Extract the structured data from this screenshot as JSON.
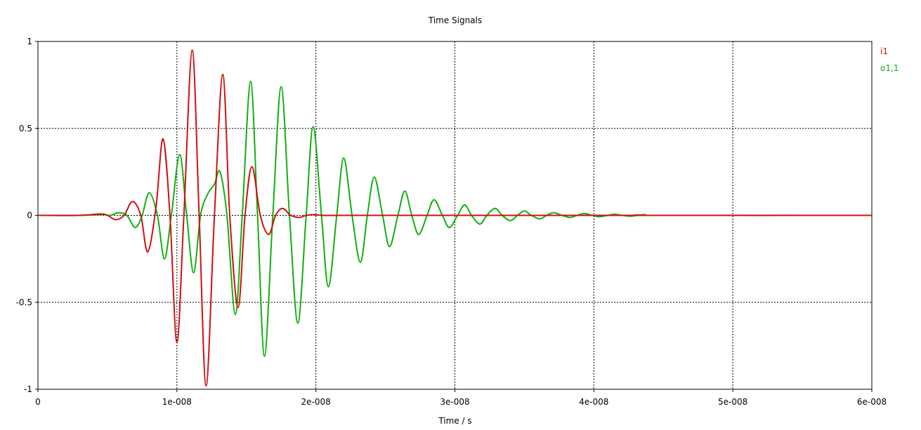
{
  "chart_data": {
    "type": "line",
    "title": "Time Signals",
    "xlabel": "Time / s",
    "ylabel": "",
    "xlim": [
      0,
      6e-08
    ],
    "ylim": [
      -1,
      1
    ],
    "xticks": [
      0,
      1e-08,
      2e-08,
      3e-08,
      4e-08,
      5e-08,
      6e-08
    ],
    "xtick_labels": [
      "0",
      "1e-008",
      "2e-008",
      "3e-008",
      "4e-008",
      "5e-008",
      "6e-008"
    ],
    "yticks": [
      1,
      0.5,
      0,
      -0.5,
      -1
    ],
    "ytick_labels": [
      "1",
      "0.5",
      "0",
      "-0.5",
      "-1"
    ],
    "grid": true,
    "legend_position": "right",
    "series": [
      {
        "name": "i1",
        "color": "#d01010",
        "x": [
          0,
          3e-09,
          4.5e-09,
          5e-09,
          5.6e-09,
          6.2e-09,
          6.8e-09,
          7.4e-09,
          7.9e-09,
          8.5e-09,
          9e-09,
          9.5e-09,
          1e-08,
          1.05e-08,
          1.11e-08,
          1.16e-08,
          1.21e-08,
          1.27e-08,
          1.33e-08,
          1.38e-08,
          1.44e-08,
          1.49e-08,
          1.54e-08,
          1.6e-08,
          1.66e-08,
          1.71e-08,
          1.76e-08,
          1.82e-08,
          1.88e-08,
          1.93e-08,
          1.98e-08,
          2.05e-08,
          2.2e-08,
          3e-08,
          6e-08
        ],
        "y": [
          0,
          0,
          0.008,
          0.0,
          -0.025,
          0.0,
          0.08,
          0.0,
          -0.21,
          0.05,
          0.44,
          0.0,
          -0.73,
          0.0,
          0.95,
          0.0,
          -0.98,
          0.0,
          0.81,
          0.0,
          -0.53,
          0.0,
          0.28,
          0.0,
          -0.11,
          0.0,
          0.04,
          0.0,
          -0.012,
          0.0,
          0.004,
          0.0,
          0,
          0,
          0
        ]
      },
      {
        "name": "o1,1",
        "color": "#10b010",
        "x": [
          0,
          3e-09,
          4.6e-09,
          5.2e-09,
          5.8e-09,
          6.4e-09,
          7e-09,
          7.5e-09,
          8e-09,
          8.6e-09,
          9.1e-09,
          9.6e-09,
          1.02e-08,
          1.07e-08,
          1.12e-08,
          1.17e-08,
          1.22e-08,
          1.27e-08,
          1.31e-08,
          1.36e-08,
          1.42e-08,
          1.47e-08,
          1.53e-08,
          1.58e-08,
          1.63e-08,
          1.69e-08,
          1.75e-08,
          1.81e-08,
          1.87e-08,
          1.93e-08,
          1.98e-08,
          2.04e-08,
          2.09e-08,
          2.15e-08,
          2.2e-08,
          2.26e-08,
          2.32e-08,
          2.37e-08,
          2.42e-08,
          2.48e-08,
          2.53e-08,
          2.59e-08,
          2.64e-08,
          2.69e-08,
          2.74e-08,
          2.8e-08,
          2.85e-08,
          2.91e-08,
          2.96e-08,
          3.02e-08,
          3.07e-08,
          3.12e-08,
          3.18e-08,
          3.23e-08,
          3.29e-08,
          3.34e-08,
          3.4e-08,
          3.45e-08,
          3.5e-08,
          3.55e-08,
          3.61e-08,
          3.66e-08,
          3.71e-08,
          3.77e-08,
          3.83e-08,
          3.88e-08,
          3.93e-08,
          3.99e-08,
          4.04e-08,
          4.1e-08,
          4.15e-08,
          4.2e-08,
          4.26e-08,
          4.31e-08,
          4.37e-08,
          4.42e-08,
          6e-08
        ],
        "y": [
          0,
          0,
          0.005,
          0.0,
          0.015,
          0.0,
          -0.07,
          0.0,
          0.13,
          0.0,
          -0.25,
          0.0,
          0.35,
          0.0,
          -0.33,
          0.0,
          0.12,
          0.18,
          0.25,
          0.0,
          -0.57,
          0.0,
          0.77,
          0.0,
          -0.81,
          0.0,
          0.74,
          0.0,
          -0.62,
          0.0,
          0.51,
          0.0,
          -0.41,
          0.0,
          0.33,
          0.0,
          -0.27,
          0.0,
          0.22,
          0.0,
          -0.18,
          0.0,
          0.14,
          0.0,
          -0.11,
          0.0,
          0.09,
          0.0,
          -0.07,
          0.0,
          0.06,
          0.0,
          -0.05,
          0.0,
          0.04,
          0.0,
          -0.03,
          0.0,
          0.025,
          0.0,
          -0.02,
          0.0,
          0.015,
          0.0,
          -0.012,
          0.0,
          0.01,
          0.0,
          -0.008,
          0.0,
          0.006,
          0.0,
          -0.005,
          0.0,
          0.004,
          0.0,
          0
        ]
      }
    ]
  }
}
